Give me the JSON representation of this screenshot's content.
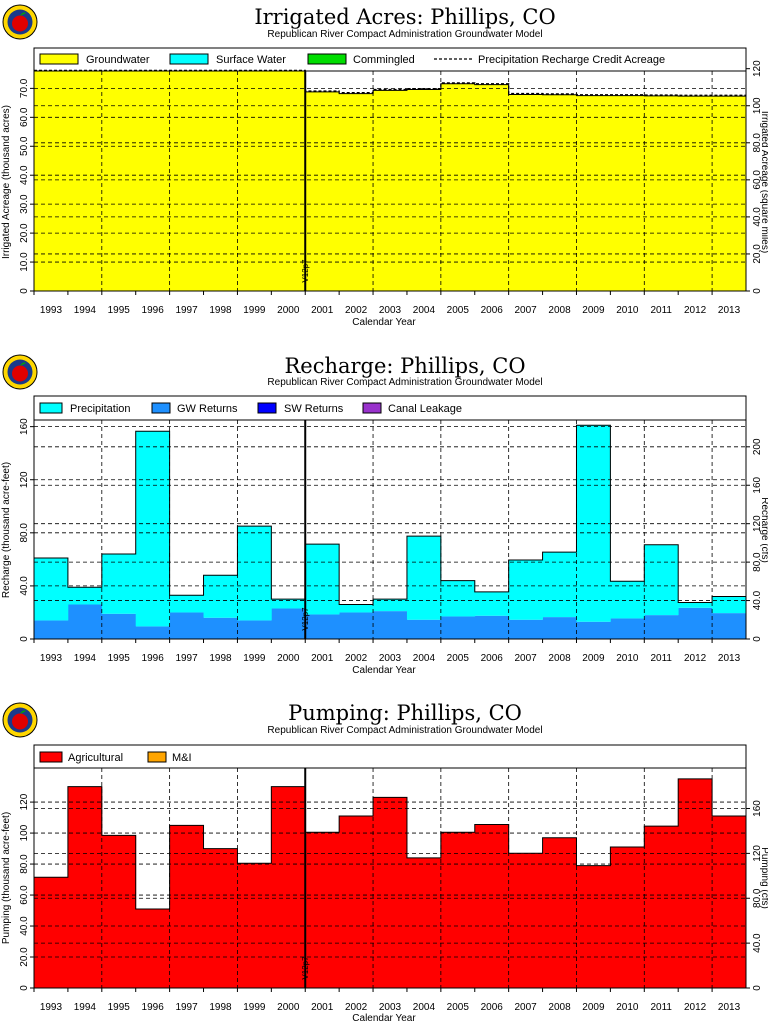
{
  "colors": {
    "groundwater": "#ffff00",
    "surface_water": "#00ffff",
    "commingled": "#00dd00",
    "precipitation": "#00ffff",
    "gw_returns": "#1e90ff",
    "sw_returns": "#0000ff",
    "canal_leakage": "#9932cc",
    "agricultural": "#ff0000",
    "mi": "#ffa500"
  },
  "chart_data": [
    {
      "type": "area",
      "title": "Irrigated Acres: Phillips, CO",
      "subtitle": "Republican River Compact Administration Groundwater Model",
      "xlabel": "Calendar Year",
      "ylabel": "Irrigated Acreage (thousand acres)",
      "ylabel_right": "Irrigated Acreage (square miles)",
      "ylim": [
        0,
        76
      ],
      "ylim_right": [
        0,
        118.75
      ],
      "yticks": [
        0,
        10.0,
        20.0,
        30.0,
        40.0,
        50.0,
        60.0,
        70.0
      ],
      "yticks_labels": [
        "0",
        "10.0",
        "20.0",
        "30.0",
        "40.0",
        "50.0",
        "60.0",
        "70.0"
      ],
      "yticks_right": [
        0,
        20.0,
        40.0,
        60.0,
        80.0,
        100,
        120
      ],
      "yticks_right_labels": [
        "0",
        "20.0",
        "40.0",
        "60.0",
        "80.0",
        "100",
        "120"
      ],
      "categories": [
        "1993",
        "1994",
        "1995",
        "1996",
        "1997",
        "1998",
        "1999",
        "2000",
        "2001",
        "2002",
        "2003",
        "2004",
        "2005",
        "2006",
        "2007",
        "2008",
        "2009",
        "2010",
        "2011",
        "2012",
        "2013"
      ],
      "legend": [
        "Groundwater",
        "Surface Water",
        "Commingled",
        "Precipitation Recharge Credit Acreage"
      ],
      "marker": {
        "label": "V12p7",
        "after_category": "2000"
      },
      "series": [
        {
          "name": "Groundwater",
          "values": [
            76,
            76,
            76,
            76,
            76,
            76,
            76,
            76,
            68.8,
            68.2,
            69.3,
            69.6,
            71.6,
            71.3,
            67.9,
            67.8,
            67.5,
            67.5,
            67.4,
            67.3,
            67.3
          ]
        },
        {
          "name": "Surface Water",
          "values": [
            0,
            0,
            0,
            0,
            0,
            0,
            0,
            0,
            0,
            0,
            0,
            0,
            0,
            0,
            0,
            0,
            0,
            0,
            0,
            0,
            0
          ]
        },
        {
          "name": "Commingled",
          "values": [
            0,
            0,
            0,
            0,
            0,
            0,
            0,
            0,
            0,
            0,
            0,
            0,
            0,
            0,
            0,
            0,
            0,
            0,
            0,
            0,
            0
          ]
        },
        {
          "name": "Precipitation Recharge Credit Acreage",
          "values": [
            76.2,
            76.2,
            76.2,
            76.2,
            76.2,
            76.2,
            76.2,
            76.2,
            69.1,
            68.5,
            69.6,
            69.9,
            71.9,
            71.6,
            68.2,
            68.1,
            67.8,
            67.8,
            67.7,
            67.6,
            67.6
          ]
        }
      ]
    },
    {
      "type": "area",
      "title": "Recharge: Phillips, CO",
      "subtitle": "Republican River Compact Administration Groundwater Model",
      "xlabel": "Calendar Year",
      "ylabel": "Recharge (thousand acre-feet)",
      "ylabel_right": "Recharge (cfs)",
      "ylim": [
        0,
        165
      ],
      "ylim_right": [
        0,
        227.9
      ],
      "yticks": [
        0,
        40.0,
        80.0,
        120,
        160
      ],
      "yticks_labels": [
        "0",
        "40.0",
        "80.0",
        "120",
        "160"
      ],
      "yticks_right": [
        0,
        40.0,
        80.0,
        120,
        160,
        200
      ],
      "yticks_right_labels": [
        "0",
        "40.0",
        "80.0",
        "120",
        "160",
        "200"
      ],
      "categories": [
        "1993",
        "1994",
        "1995",
        "1996",
        "1997",
        "1998",
        "1999",
        "2000",
        "2001",
        "2002",
        "2003",
        "2004",
        "2005",
        "2006",
        "2007",
        "2008",
        "2009",
        "2010",
        "2011",
        "2012",
        "2013"
      ],
      "legend": [
        "Precipitation",
        "GW Returns",
        "SW Returns",
        "Canal Leakage"
      ],
      "marker": {
        "label": "V12p7",
        "after_category": "2000"
      },
      "series": [
        {
          "name": "GW Returns",
          "values": [
            14,
            26,
            19,
            9.5,
            20,
            16,
            14,
            23,
            18.5,
            20,
            21,
            14.5,
            17,
            17.5,
            14.5,
            16.5,
            13,
            15.5,
            18,
            23.5,
            19.5
          ]
        },
        {
          "name": "Precipitation",
          "values": [
            47,
            13,
            45,
            147,
            13,
            32,
            71,
            7,
            53,
            6,
            9,
            63,
            27,
            18,
            45,
            49,
            148,
            28,
            53,
            4,
            12.5
          ]
        },
        {
          "name": "SW Returns",
          "values": [
            0,
            0,
            0,
            0,
            0,
            0,
            0,
            0,
            0,
            0,
            0,
            0,
            0,
            0,
            0,
            0,
            0,
            0,
            0,
            0,
            0
          ]
        },
        {
          "name": "Canal Leakage",
          "values": [
            0,
            0,
            0,
            0,
            0,
            0,
            0,
            0,
            0,
            0,
            0,
            0,
            0,
            0,
            0,
            0,
            0,
            0,
            0,
            0,
            0
          ]
        }
      ]
    },
    {
      "type": "area",
      "title": "Pumping: Phillips, CO",
      "subtitle": "Republican River Compact Administration Groundwater Model",
      "xlabel": "Calendar Year",
      "ylabel": "Pumping (thousand acre-feet)",
      "ylabel_right": "Pumping (cfs)",
      "ylim": [
        0,
        142
      ],
      "ylim_right": [
        0,
        196.1
      ],
      "yticks": [
        0,
        20.0,
        40.0,
        60.0,
        80.0,
        100,
        120
      ],
      "yticks_labels": [
        "0",
        "20.0",
        "40.0",
        "60.0",
        "80.0",
        "100",
        "120"
      ],
      "yticks_right": [
        0,
        40.0,
        80.0,
        120,
        160
      ],
      "yticks_right_labels": [
        "0",
        "40.0",
        "80.0",
        "120",
        "160"
      ],
      "categories": [
        "1993",
        "1994",
        "1995",
        "1996",
        "1997",
        "1998",
        "1999",
        "2000",
        "2001",
        "2002",
        "2003",
        "2004",
        "2005",
        "2006",
        "2007",
        "2008",
        "2009",
        "2010",
        "2011",
        "2012",
        "2013"
      ],
      "legend": [
        "Agricultural",
        "M&I"
      ],
      "marker": {
        "label": "V12p7",
        "after_category": "2000"
      },
      "series": [
        {
          "name": "Agricultural",
          "values": [
            71.5,
            130,
            98.5,
            51,
            105,
            90,
            80.5,
            130,
            100.5,
            111,
            123,
            84,
            100.5,
            105.5,
            87,
            97,
            79,
            91,
            104.5,
            135,
            111
          ]
        },
        {
          "name": "M&I",
          "values": [
            0,
            0,
            0,
            0,
            0,
            0,
            0,
            0,
            0,
            0,
            0,
            0,
            0,
            0,
            0,
            0,
            0,
            0,
            0,
            0,
            0
          ]
        }
      ]
    }
  ]
}
